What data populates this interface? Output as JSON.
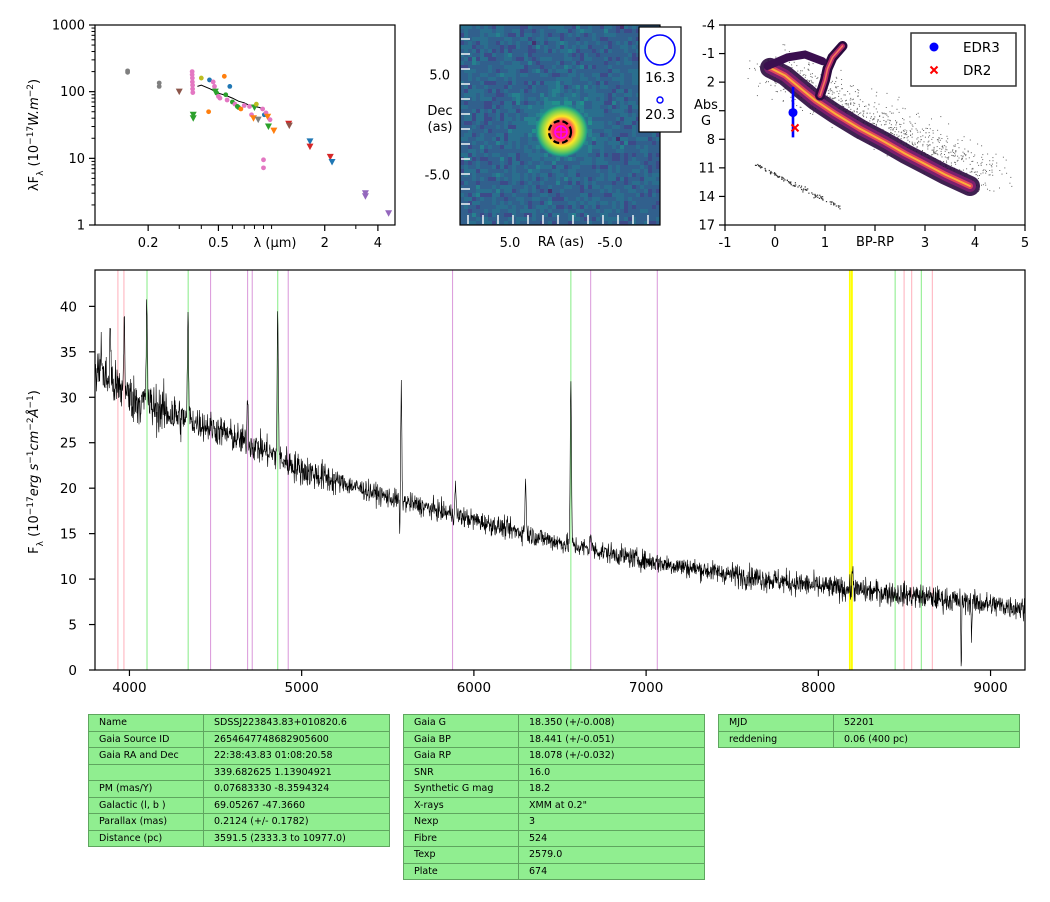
{
  "chart_data": [
    {
      "type": "scatter",
      "panel": "sed",
      "ylabel": "λF_λ (10^-17 W.m^-2)",
      "xlabel": "λ (μm)",
      "xscale": "log",
      "yscale": "log",
      "xlim": [
        0.1,
        5.0
      ],
      "ylim": [
        1,
        1000
      ],
      "xticklabels": [
        "0.2",
        "0.5",
        "2",
        "4"
      ],
      "xticks": [
        0.2,
        0.5,
        2,
        4
      ],
      "yticklabels": [
        "1",
        "10",
        "100",
        "1000"
      ],
      "yticks": [
        1,
        10,
        100,
        1000
      ],
      "points": [
        {
          "x": 0.153,
          "y": 205,
          "color": "#7f7f7f",
          "marker": "dot"
        },
        {
          "x": 0.153,
          "y": 195,
          "color": "#7f7f7f",
          "marker": "dot"
        },
        {
          "x": 0.231,
          "y": 135,
          "color": "#7f7f7f",
          "marker": "dot"
        },
        {
          "x": 0.231,
          "y": 120,
          "color": "#7f7f7f",
          "marker": "dot"
        },
        {
          "x": 0.3,
          "y": 100,
          "color": "#8c564b",
          "marker": "tri"
        },
        {
          "x": 0.355,
          "y": 200,
          "color": "#e377c2",
          "marker": "dot"
        },
        {
          "x": 0.355,
          "y": 180,
          "color": "#e377c2",
          "marker": "dot"
        },
        {
          "x": 0.356,
          "y": 160,
          "color": "#e377c2",
          "marker": "dot"
        },
        {
          "x": 0.356,
          "y": 140,
          "color": "#e377c2",
          "marker": "dot"
        },
        {
          "x": 0.357,
          "y": 125,
          "color": "#e377c2",
          "marker": "dot"
        },
        {
          "x": 0.357,
          "y": 110,
          "color": "#e377c2",
          "marker": "dot"
        },
        {
          "x": 0.358,
          "y": 97,
          "color": "#e377c2",
          "marker": "dot"
        },
        {
          "x": 0.36,
          "y": 45,
          "color": "#2ca02c",
          "marker": "tri"
        },
        {
          "x": 0.36,
          "y": 40,
          "color": "#2ca02c",
          "marker": "tri"
        },
        {
          "x": 0.4,
          "y": 160,
          "color": "#bcbd22",
          "marker": "dot"
        },
        {
          "x": 0.44,
          "y": 50,
          "color": "#ff7f0e",
          "marker": "dot"
        },
        {
          "x": 0.445,
          "y": 150,
          "color": "#1f77b4",
          "marker": "dot"
        },
        {
          "x": 0.467,
          "y": 140,
          "color": "#e377c2",
          "marker": "dot"
        },
        {
          "x": 0.475,
          "y": 120,
          "color": "#e377c2",
          "marker": "dot"
        },
        {
          "x": 0.48,
          "y": 100,
          "color": "#2ca02c",
          "marker": "tri"
        },
        {
          "x": 0.49,
          "y": 95,
          "color": "#2ca02c",
          "marker": "dot"
        },
        {
          "x": 0.5,
          "y": 85,
          "color": "#e377c2",
          "marker": "dot"
        },
        {
          "x": 0.51,
          "y": 80,
          "color": "#e377c2",
          "marker": "dot"
        },
        {
          "x": 0.54,
          "y": 170,
          "color": "#ff7f0e",
          "marker": "dot"
        },
        {
          "x": 0.55,
          "y": 90,
          "color": "#2ca02c",
          "marker": "dot"
        },
        {
          "x": 0.56,
          "y": 75,
          "color": "#e377c2",
          "marker": "dot"
        },
        {
          "x": 0.58,
          "y": 120,
          "color": "#1f77b4",
          "marker": "dot"
        },
        {
          "x": 0.6,
          "y": 70,
          "color": "#2ca02c",
          "marker": "dot"
        },
        {
          "x": 0.62,
          "y": 65,
          "color": "#e377c2",
          "marker": "dot"
        },
        {
          "x": 0.64,
          "y": 60,
          "color": "#2ca02c",
          "marker": "dot"
        },
        {
          "x": 0.65,
          "y": 58,
          "color": "#2ca02c",
          "marker": "dot"
        },
        {
          "x": 0.67,
          "y": 55,
          "color": "#ff7f0e",
          "marker": "dot"
        },
        {
          "x": 0.7,
          "y": 62,
          "color": "#e377c2",
          "marker": "dot"
        },
        {
          "x": 0.75,
          "y": 60,
          "color": "#e377c2",
          "marker": "dot"
        },
        {
          "x": 0.77,
          "y": 45,
          "color": "#e377c2",
          "marker": "dot"
        },
        {
          "x": 0.79,
          "y": 40,
          "color": "#ff7f0e",
          "marker": "tri"
        },
        {
          "x": 0.8,
          "y": 58,
          "color": "#2ca02c",
          "marker": "tri"
        },
        {
          "x": 0.82,
          "y": 65,
          "color": "#bcbd22",
          "marker": "dot"
        },
        {
          "x": 0.84,
          "y": 38,
          "color": "#7f7f7f",
          "marker": "tri"
        },
        {
          "x": 0.89,
          "y": 55,
          "color": "#e377c2",
          "marker": "dot"
        },
        {
          "x": 0.9,
          "y": 9.5,
          "color": "#e377c2",
          "marker": "dot"
        },
        {
          "x": 0.9,
          "y": 7.2,
          "color": "#e377c2",
          "marker": "dot"
        },
        {
          "x": 0.91,
          "y": 45,
          "color": "#1f77b4",
          "marker": "dot"
        },
        {
          "x": 0.93,
          "y": 48,
          "color": "#e377c2",
          "marker": "dot"
        },
        {
          "x": 0.95,
          "y": 42,
          "color": "#ff7f0e",
          "marker": "tri"
        },
        {
          "x": 0.96,
          "y": 30,
          "color": "#2ca02c",
          "marker": "tri"
        },
        {
          "x": 0.98,
          "y": 38,
          "color": "#e377c2",
          "marker": "dot"
        },
        {
          "x": 1.03,
          "y": 26,
          "color": "#ff7f0e",
          "marker": "tri"
        },
        {
          "x": 1.25,
          "y": 33,
          "color": "#d62728",
          "marker": "tri"
        },
        {
          "x": 1.26,
          "y": 31,
          "color": "#8c564b",
          "marker": "tri"
        },
        {
          "x": 1.65,
          "y": 18,
          "color": "#1f77b4",
          "marker": "tri"
        },
        {
          "x": 1.65,
          "y": 15,
          "color": "#d62728",
          "marker": "tri"
        },
        {
          "x": 2.15,
          "y": 10.5,
          "color": "#d62728",
          "marker": "tri"
        },
        {
          "x": 2.2,
          "y": 8.8,
          "color": "#1f77b4",
          "marker": "tri"
        },
        {
          "x": 3.4,
          "y": 3.0,
          "color": "#9467bd",
          "marker": "tri"
        },
        {
          "x": 3.4,
          "y": 2.7,
          "color": "#9467bd",
          "marker": "tri"
        },
        {
          "x": 4.6,
          "y": 1.5,
          "color": "#9467bd",
          "marker": "tri"
        }
      ],
      "model_line": [
        [
          0.38,
          120
        ],
        [
          0.4,
          125
        ],
        [
          0.45,
          110
        ],
        [
          0.5,
          95
        ],
        [
          0.55,
          88
        ],
        [
          0.6,
          80
        ],
        [
          0.65,
          72
        ],
        [
          0.7,
          68
        ],
        [
          0.75,
          62
        ],
        [
          0.8,
          60
        ],
        [
          0.85,
          58
        ],
        [
          0.9,
          55
        ]
      ]
    },
    {
      "type": "heatmap",
      "panel": "image",
      "xlabel": "RA (as)",
      "ylabel": "Dec (as)",
      "xlim": [
        10,
        -10
      ],
      "ylim": [
        -10,
        10
      ],
      "xticks": [
        5.0,
        -5.0
      ],
      "xticklabels": [
        "5.0",
        "-5.0"
      ],
      "yticks": [
        5.0,
        -5.0
      ],
      "yticklabels": [
        "5.0",
        "-5.0"
      ],
      "source": {
        "ra": 0.0,
        "dec": 0.0
      },
      "legend": [
        {
          "label": "16.3",
          "marker": "large-circle",
          "color": "#0000ff"
        },
        {
          "label": "20.3",
          "marker": "small-circle",
          "color": "#0000ff"
        }
      ]
    },
    {
      "type": "scatter",
      "panel": "cmd",
      "xlabel": "BP-RP",
      "ylabel": "Abs G",
      "xlim": [
        -1,
        5
      ],
      "ylim": [
        17,
        -4
      ],
      "xticks": [
        -1,
        0,
        1,
        2,
        3,
        4,
        5
      ],
      "xticklabels": [
        "-1",
        "0",
        "1",
        "2",
        "3",
        "4",
        "5"
      ],
      "yticks": [
        -4,
        -1,
        2,
        5,
        8,
        11,
        14,
        17
      ],
      "yticklabels": [
        "-4",
        "-1",
        "2",
        "5",
        "8",
        "11",
        "14",
        "17"
      ],
      "legend_position": "top-right",
      "series": [
        {
          "name": "EDR3",
          "x": 0.36,
          "y": 5.2,
          "color": "#0000ff",
          "marker": "dot",
          "err_low": 2.5,
          "err_high": 7.8
        },
        {
          "name": "DR2",
          "x": 0.4,
          "y": 6.8,
          "color": "#ff0000",
          "marker": "x"
        }
      ]
    },
    {
      "type": "line",
      "panel": "spectrum",
      "ylabel": "Fλ (10^-17 erg s^-1 cm^-2 Å^-1)",
      "xlim": [
        3800,
        9200
      ],
      "ylim": [
        0,
        44
      ],
      "xticks": [
        4000,
        5000,
        6000,
        7000,
        8000,
        9000
      ],
      "xticklabels": [
        "4000",
        "5000",
        "6000",
        "7000",
        "8000",
        "9000"
      ],
      "yticks": [
        0,
        5,
        10,
        15,
        20,
        25,
        30,
        35,
        40
      ],
      "yticklabels": [
        "0",
        "5",
        "10",
        "15",
        "20",
        "25",
        "30",
        "35",
        "40"
      ],
      "continuum": [
        [
          3800,
          33
        ],
        [
          4000,
          30
        ],
        [
          4200,
          28.5
        ],
        [
          4500,
          26.5
        ],
        [
          4800,
          24
        ],
        [
          5000,
          22
        ],
        [
          5500,
          19
        ],
        [
          6000,
          16.5
        ],
        [
          6500,
          14
        ],
        [
          7000,
          12
        ],
        [
          7500,
          10.5
        ],
        [
          8000,
          9.2
        ],
        [
          8500,
          8.3
        ],
        [
          9000,
          7.2
        ],
        [
          9200,
          6.8
        ]
      ],
      "emission": [
        {
          "x": 3835,
          "y": 4
        },
        {
          "x": 3889,
          "y": 6
        },
        {
          "x": 3970,
          "y": 8
        },
        {
          "x": 4101,
          "y": 11
        },
        {
          "x": 4340,
          "y": 11
        },
        {
          "x": 4686,
          "y": 5
        },
        {
          "x": 4861,
          "y": 16
        },
        {
          "x": 5578,
          "y": 12
        },
        {
          "x": 5893,
          "y": 3
        },
        {
          "x": 6300,
          "y": 6
        },
        {
          "x": 6563,
          "y": 18
        },
        {
          "x": 6678,
          "y": 2
        },
        {
          "x": 8200,
          "y": 2
        }
      ],
      "absorption": [
        {
          "x": 5570,
          "y": -5
        },
        {
          "x": 8830,
          "y": -8
        },
        {
          "x": 8890,
          "y": -4
        }
      ],
      "line_markers": [
        {
          "x": 3933,
          "color": "#ffb6c1"
        },
        {
          "x": 3968,
          "color": "#ffb6c1"
        },
        {
          "x": 4102,
          "color": "#90ee90"
        },
        {
          "x": 4341,
          "color": "#90ee90"
        },
        {
          "x": 4471,
          "color": "#dda0dd"
        },
        {
          "x": 4686,
          "color": "#dda0dd"
        },
        {
          "x": 4713,
          "color": "#dda0dd"
        },
        {
          "x": 4861,
          "color": "#90ee90"
        },
        {
          "x": 4922,
          "color": "#dda0dd"
        },
        {
          "x": 5876,
          "color": "#dda0dd"
        },
        {
          "x": 6563,
          "color": "#90ee90"
        },
        {
          "x": 6678,
          "color": "#dda0dd"
        },
        {
          "x": 7065,
          "color": "#dda0dd"
        },
        {
          "x": 8183,
          "color": "#ffff00"
        },
        {
          "x": 8195,
          "color": "#ffff00"
        },
        {
          "x": 8446,
          "color": "#90ee90"
        },
        {
          "x": 8498,
          "color": "#ffb6c1"
        },
        {
          "x": 8542,
          "color": "#ffb6c1"
        },
        {
          "x": 8598,
          "color": "#90ee90"
        },
        {
          "x": 8662,
          "color": "#ffb6c1"
        }
      ]
    }
  ],
  "tables": {
    "t1": [
      [
        "Name",
        "SDSSJ223843.83+010820.6"
      ],
      [
        "Gaia Source ID",
        "2654647748682905600"
      ],
      [
        "Gaia RA and Dec",
        "22:38:43.83    01:08:20.58"
      ],
      [
        "",
        "339.682625    1.13904921"
      ],
      [
        "PM (mas/Y)",
        "0.07683330    -8.3594324"
      ],
      [
        "Galactic (l, b )",
        "69.05267    -47.3660"
      ],
      [
        "Parallax (mas)",
        "0.2124 (+/- 0.1782)"
      ],
      [
        "Distance (pc)",
        "3591.5 (2333.3 to 10977.0)"
      ]
    ],
    "t2": [
      [
        "Gaia G",
        "18.350 (+/-0.008)"
      ],
      [
        "Gaia BP",
        "18.441 (+/-0.051)"
      ],
      [
        "Gaia RP",
        "18.078 (+/-0.032)"
      ],
      [
        "SNR",
        "16.0"
      ],
      [
        "Synthetic G mag",
        "18.2"
      ],
      [
        "X-rays",
        "XMM at 0.2\""
      ],
      [
        "Nexp",
        "3"
      ],
      [
        "Fibre",
        "524"
      ],
      [
        "Texp",
        "2579.0"
      ],
      [
        "Plate",
        "674"
      ]
    ],
    "t3": [
      [
        "MJD",
        "52201"
      ],
      [
        "reddening",
        "0.06 (400 pc)"
      ]
    ]
  }
}
